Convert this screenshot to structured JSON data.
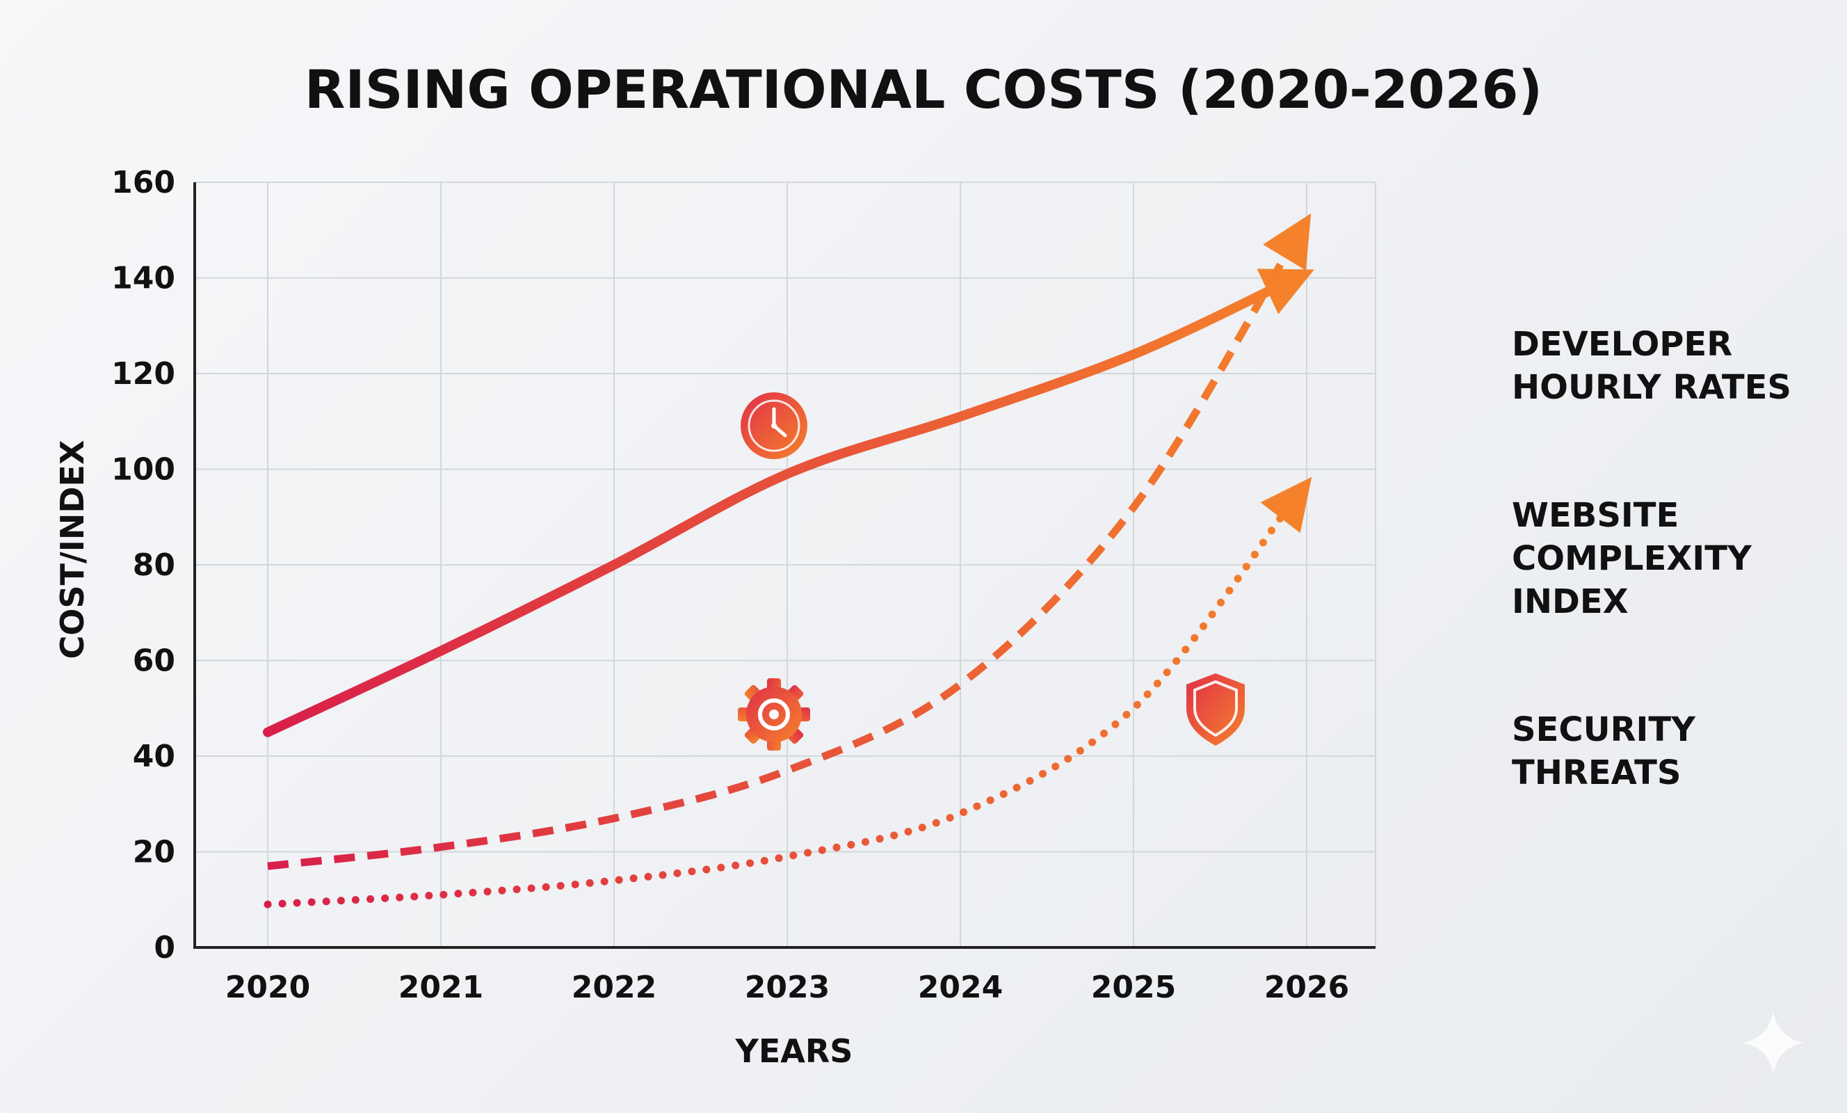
{
  "chart_data": {
    "type": "line",
    "title": "RISING OPERATIONAL COSTS (2020-2026)",
    "xlabel": "YEARS",
    "ylabel": "COST/INDEX",
    "x": [
      "2020",
      "2021",
      "2022",
      "2023",
      "2024",
      "2025",
      "2026"
    ],
    "ylim": [
      0,
      160
    ],
    "yticks": [
      "0",
      "20",
      "40",
      "60",
      "80",
      "100",
      "120",
      "140",
      "160"
    ],
    "grid": true,
    "legend_position": "right",
    "series": [
      {
        "name": "DEVELOPER HOURLY RATES",
        "legend_lines": [
          "DEVELOPER",
          "HOURLY RATES"
        ],
        "style": "solid",
        "values": [
          45,
          62,
          80,
          99,
          111,
          124,
          141
        ]
      },
      {
        "name": "WEBSITE COMPLEXITY INDEX",
        "legend_lines": [
          "WEBSITE",
          "COMPLEXITY",
          "INDEX"
        ],
        "style": "dashed",
        "values": [
          17,
          21,
          27,
          37,
          55,
          92,
          152
        ]
      },
      {
        "name": "SECURITY THREATS",
        "legend_lines": [
          "SECURITY",
          "THREATS"
        ],
        "style": "dotted",
        "values": [
          9,
          11,
          14,
          19,
          28,
          50,
          97
        ]
      }
    ],
    "icons": [
      "clock-icon",
      "gear-icon",
      "shield-icon"
    ],
    "colors": {
      "start": "#d81e4a",
      "end": "#f5822a",
      "grid": "#d3d6db",
      "axis": "#222222"
    }
  }
}
